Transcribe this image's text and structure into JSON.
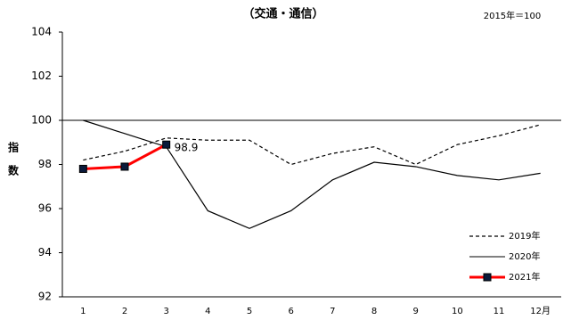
{
  "chart_data": {
    "type": "line",
    "title": "（交通・通信）",
    "note": "2015年＝100",
    "y_label": "指数",
    "categories": [
      "1",
      "2",
      "3",
      "4",
      "5",
      "6",
      "7",
      "8",
      "9",
      "10",
      "11",
      "12月"
    ],
    "ylim": [
      92,
      104
    ],
    "yticks": [
      92,
      94,
      96,
      98,
      100,
      102,
      104
    ],
    "reference_line": 100,
    "legend": "lower right",
    "series": [
      {
        "name": "2019年",
        "color": "#000000",
        "style": "dashed",
        "values": [
          98.2,
          98.6,
          99.2,
          99.1,
          99.1,
          98.0,
          98.5,
          98.8,
          98.0,
          98.9,
          99.3,
          99.8
        ]
      },
      {
        "name": "2020年",
        "color": "#000000",
        "style": "solid",
        "values": [
          100.0,
          99.4,
          98.8,
          95.9,
          95.1,
          95.9,
          97.3,
          98.1,
          97.9,
          97.5,
          97.3,
          97.6
        ]
      },
      {
        "name": "2021年",
        "color": "#ff0000",
        "style": "marker",
        "values": [
          97.8,
          97.9,
          98.9,
          null,
          null,
          null,
          null,
          null,
          null,
          null,
          null,
          null
        ],
        "value_labels": [
          null,
          null,
          "98.9",
          null,
          null,
          null,
          null,
          null,
          null,
          null,
          null,
          null
        ]
      }
    ]
  }
}
